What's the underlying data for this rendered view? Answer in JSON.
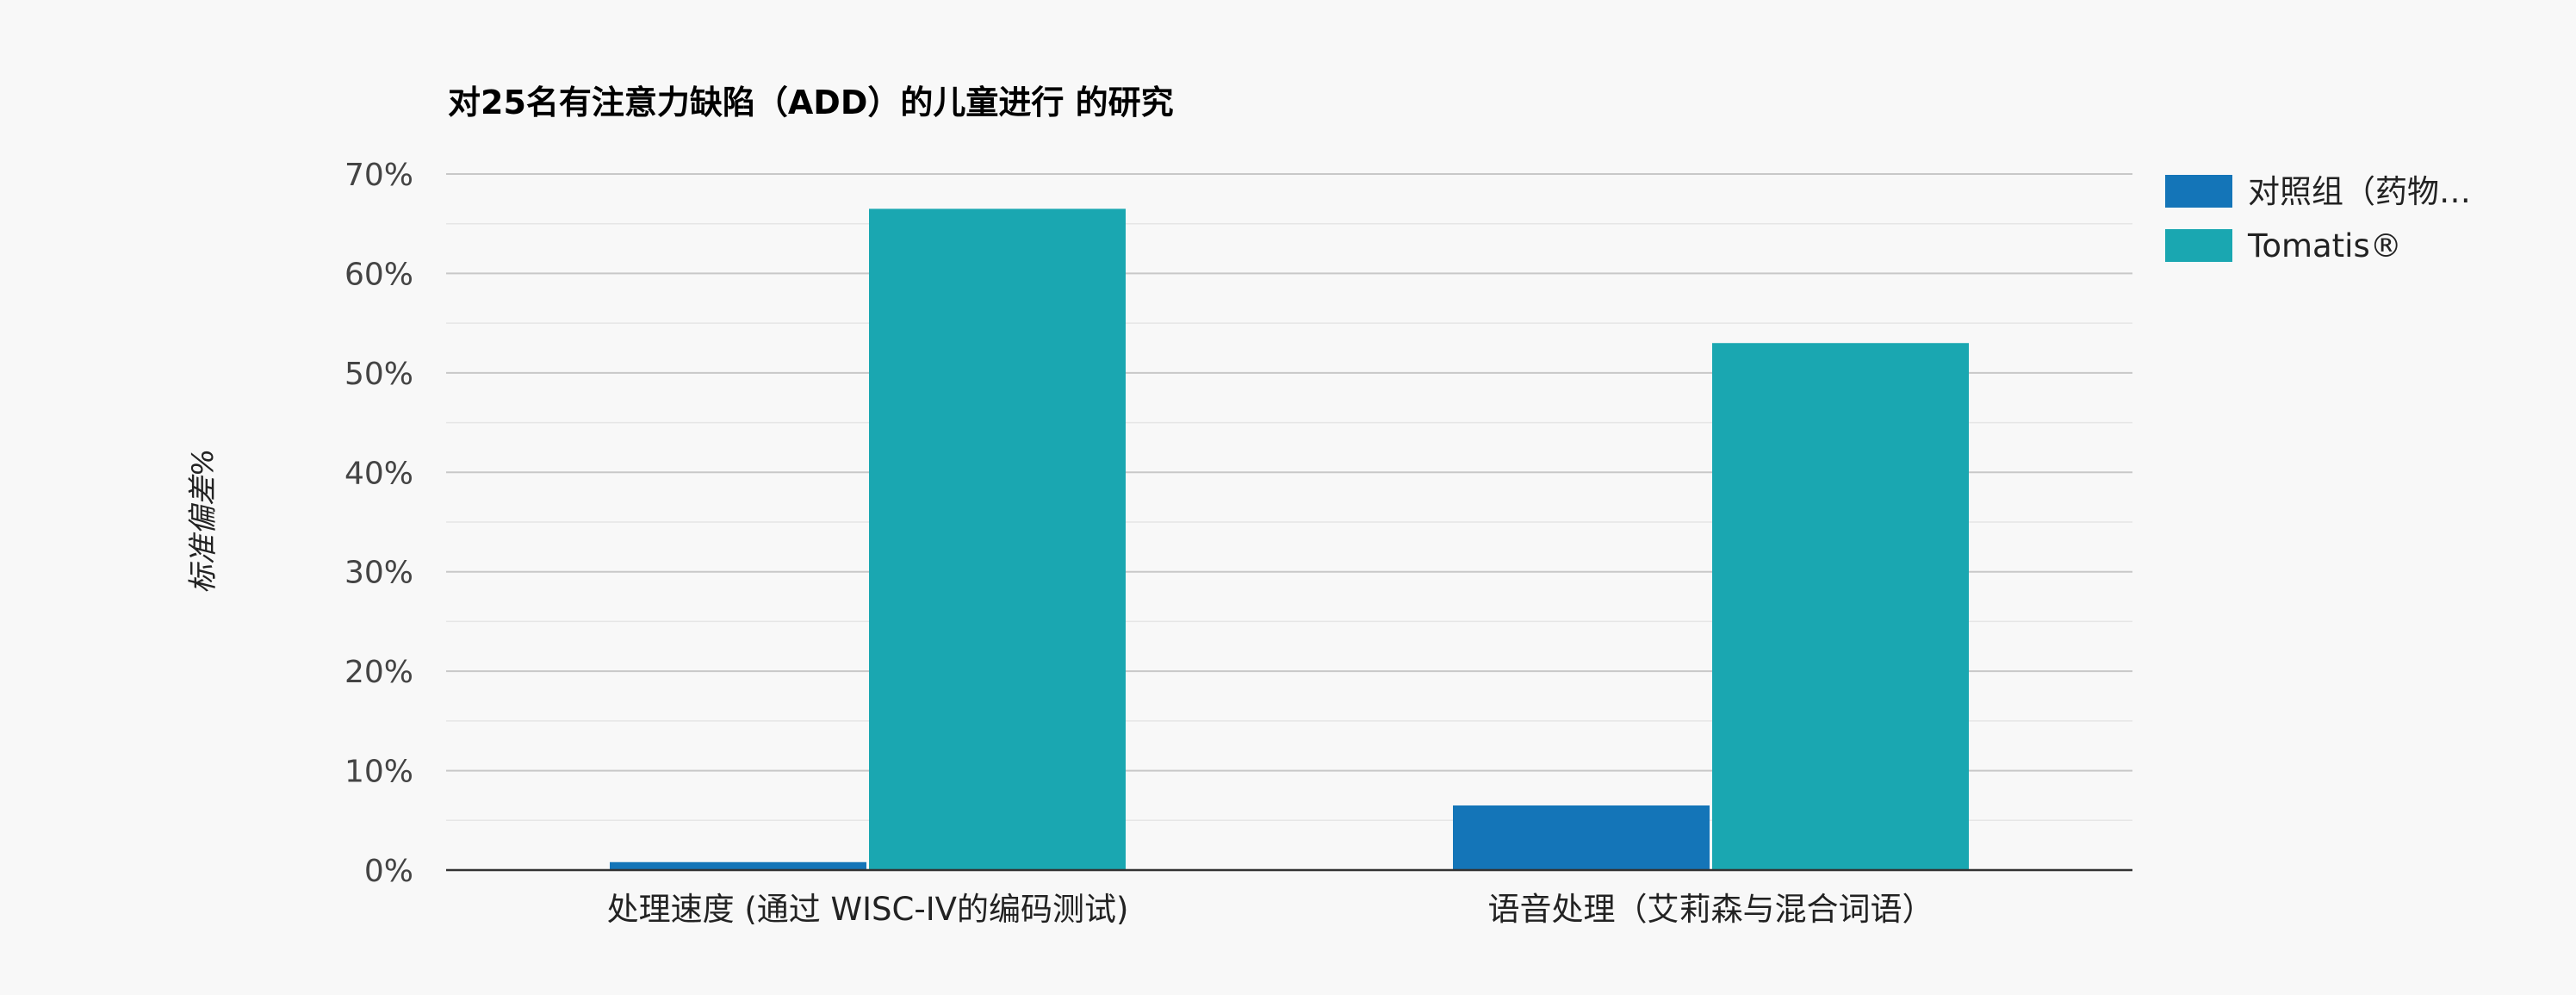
{
  "chart_data": {
    "type": "bar",
    "title": "对25名有注意力缺陷（ADD）的儿童进行 的研究",
    "ylabel": "标准偏差%",
    "xlabel": "",
    "categories": [
      "处理速度 (通过 WISC-IV的编码测试)",
      "语音处理（艾莉森与混合词语）"
    ],
    "series": [
      {
        "name": "对照组（药物…",
        "values": [
          0.8,
          6.5
        ],
        "color": "#1475b8"
      },
      {
        "name": "Tomatis®",
        "values": [
          66.5,
          53.0
        ],
        "color": "#1aa7b1"
      }
    ],
    "ylim": [
      0,
      70
    ],
    "yticks": [
      0,
      10,
      20,
      30,
      40,
      50,
      60,
      70
    ],
    "ytick_labels": [
      "0%",
      "10%",
      "20%",
      "30%",
      "40%",
      "50%",
      "60%",
      "70%"
    ],
    "grid": true,
    "legend_position": "top-right"
  }
}
